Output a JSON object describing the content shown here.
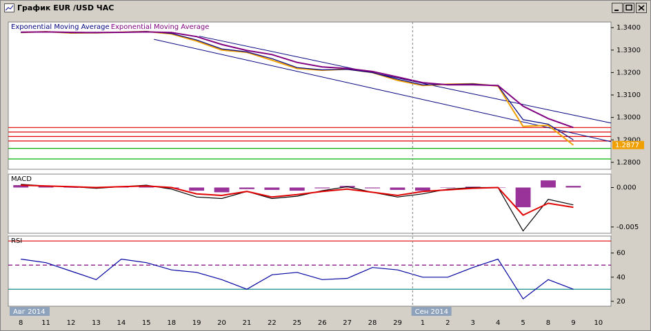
{
  "window": {
    "title": "График EUR /USD ЧАС"
  },
  "chart_data": [
    {
      "type": "line",
      "ylim": [
        1.2769,
        1.3425
      ],
      "yticks": [
        {
          "value": 1.34,
          "label": "1.3400"
        },
        {
          "value": 1.33,
          "label": "1.3300"
        },
        {
          "value": 1.32,
          "label": "1.3200"
        },
        {
          "value": 1.31,
          "label": "1.3100"
        },
        {
          "value": 1.3,
          "label": "1.3000"
        },
        {
          "value": 1.29,
          "label": "1.2900"
        },
        {
          "value": 1.28,
          "label": "1.2800"
        }
      ],
      "price_label": "1.2877",
      "series": [
        {
          "color": "#f0a000",
          "values": [
            1.3378,
            1.3382,
            1.3376,
            1.3377,
            1.338,
            1.3383,
            1.3372,
            1.334,
            1.33,
            1.329,
            1.3255,
            1.3218,
            1.321,
            1.3215,
            1.32,
            1.3165,
            1.3142,
            1.3148,
            1.315,
            1.314,
            1.296,
            1.2965,
            1.2877,
            null
          ]
        },
        {
          "name": "Exponential Moving Average",
          "color": "#000080",
          "values": [
            1.3378,
            1.3382,
            1.3377,
            1.3377,
            1.338,
            1.3383,
            1.3374,
            1.3345,
            1.3305,
            1.3292,
            1.3262,
            1.3222,
            1.3212,
            1.3214,
            1.32,
            1.317,
            1.3145,
            1.3147,
            1.3149,
            1.3141,
            1.299,
            1.297,
            1.29,
            null
          ]
        },
        {
          "name": "Exponential Moving Average",
          "color": "#800080",
          "values": [
            1.338,
            1.3381,
            1.3379,
            1.3378,
            1.3379,
            1.3381,
            1.3378,
            1.336,
            1.3325,
            1.3298,
            1.328,
            1.3245,
            1.3225,
            1.3218,
            1.3205,
            1.318,
            1.3155,
            1.3145,
            1.3145,
            1.3142,
            1.305,
            1.2995,
            1.2955,
            null
          ]
        }
      ],
      "levels": [
        {
          "value": 1.2955,
          "color": "#e00000"
        },
        {
          "value": 1.2935,
          "color": "#e00000"
        },
        {
          "value": 1.2915,
          "color": "#e00000"
        },
        {
          "value": 1.2895,
          "color": "#e00000"
        },
        {
          "value": 1.2862,
          "color": "#00b000"
        },
        {
          "value": 1.2815,
          "color": "#00b000"
        }
      ],
      "trendlines": [
        {
          "x": [
            7.1,
            23.5
          ],
          "y": [
            1.3362,
            1.2975
          ],
          "color": "#000080"
        },
        {
          "x": [
            5.3,
            23.5
          ],
          "y": [
            1.3348,
            1.2892
          ],
          "color": "#000080"
        }
      ]
    },
    {
      "type": "line",
      "title": "MACD",
      "ylim": [
        -0.0058,
        0.0017
      ],
      "yticks": [
        {
          "value": 0,
          "label": "0.000"
        },
        {
          "value": -0.005,
          "label": "-0.005"
        }
      ],
      "series": [
        {
          "type": "bar",
          "color": "#800080",
          "values": [
            0.0003,
            0.0002,
            0,
            -0.0001,
            0.0001,
            0.0002,
            -0.0001,
            -0.0004,
            -0.0006,
            -0.0002,
            -0.0003,
            -0.0004,
            -0.0001,
            0.0002,
            -0.0001,
            -0.0003,
            -0.0004,
            0,
            0.0001,
            0,
            -0.0025,
            0.0009,
            0.0002,
            null
          ]
        },
        {
          "color": "#000000",
          "values": [
            0.0004,
            0.0002,
            0.0001,
            -0.0001,
            0.0001,
            0.0003,
            -0.0002,
            -0.0012,
            -0.0014,
            -0.0005,
            -0.0014,
            -0.0011,
            -0.0004,
            0.0001,
            -0.0006,
            -0.0012,
            -0.0008,
            -0.0002,
            0,
            0,
            -0.0055,
            -0.0015,
            -0.0022,
            null
          ]
        },
        {
          "color": "#e00000",
          "values": [
            0.0003,
            0.0002,
            0.0001,
            0,
            0.0001,
            0.0002,
            0,
            -0.0008,
            -0.001,
            -0.0005,
            -0.0012,
            -0.0009,
            -0.0005,
            -0.0002,
            -0.0006,
            -0.001,
            -0.0005,
            -0.0003,
            -0.0001,
            0,
            -0.0035,
            -0.002,
            -0.0025,
            null
          ]
        }
      ]
    },
    {
      "type": "line",
      "title": "RSI",
      "ylim": [
        15.9,
        74.1
      ],
      "yticks": [
        20,
        40,
        60
      ],
      "categories": [
        "8",
        "11",
        "12",
        "13",
        "14",
        "15",
        "18",
        "19",
        "20",
        "21",
        "22",
        "25",
        "26",
        "27",
        "28",
        "29",
        "1",
        "2",
        "3",
        "4",
        "5",
        "8",
        "9",
        "10"
      ],
      "period_labels": [
        {
          "at": 0,
          "label": "Авг 2014"
        },
        {
          "at": 16,
          "label": "Сен 2014"
        }
      ],
      "series": [
        {
          "color": "#0000a0",
          "values": [
            55,
            52,
            45,
            38,
            55,
            52,
            46,
            44,
            38,
            30,
            42,
            44,
            38,
            39,
            48,
            46,
            40,
            40,
            48,
            55,
            22,
            38,
            30,
            null
          ]
        }
      ],
      "levels": [
        {
          "value": 70,
          "color": "#e00000"
        },
        {
          "value": 50,
          "color": "#800080",
          "dash": true
        },
        {
          "value": 30,
          "color": "#008080"
        }
      ]
    }
  ]
}
